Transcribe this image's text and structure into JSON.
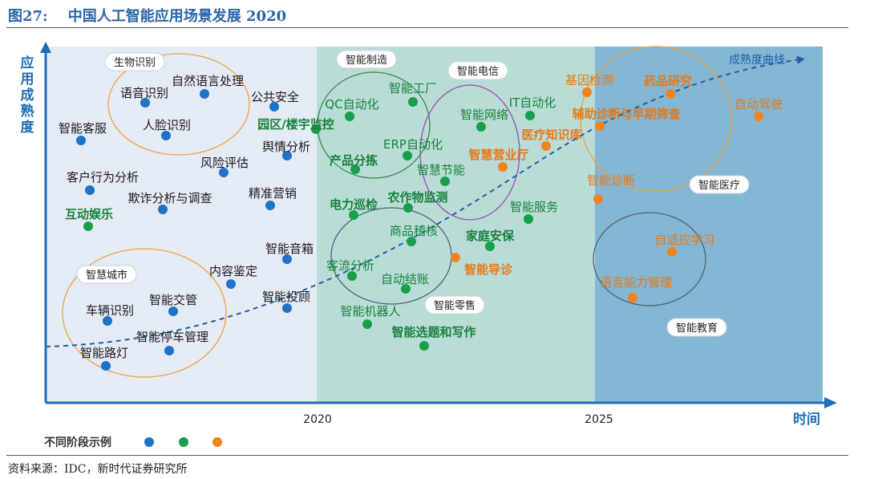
{
  "figure_title": "图27:    中国人工智能应用场景发展 2020",
  "source_note": "资料来源：IDC，新时代证券研究所",
  "colors": {
    "blue_point": "#1e73c8",
    "green_point": "#16a04a",
    "orange_point": "#f0841e",
    "zone1_bg": "#e4ebf4",
    "zone2_bg": "#b9ddd6",
    "zone3_bg": "#84b7d3",
    "axis": "#1e6eb7",
    "curve": "#1e5ea8"
  },
  "chart_data": {
    "type": "scatter",
    "title": "",
    "xlabel": "时间",
    "ylabel": "应用成熟度",
    "x_ticks": [
      "2020",
      "2025"
    ],
    "curve_label": "成熟度曲线",
    "legend": {
      "label": "不同阶段示例",
      "colors": [
        "blue",
        "green",
        "orange"
      ]
    },
    "groups": [
      {
        "name": "生物识别",
        "shape": "ellipse",
        "tone": "orange"
      },
      {
        "name": "智慧城市",
        "shape": "ellipse",
        "tone": "orange"
      },
      {
        "name": "智能制造",
        "shape": "ellipse",
        "tone": "green"
      },
      {
        "name": "智能电信",
        "shape": "ellipse",
        "tone": "purple"
      },
      {
        "name": "智能零售",
        "shape": "ellipse",
        "tone": "gray"
      },
      {
        "name": "智能医疗",
        "shape": "ellipse",
        "tone": "orange"
      },
      {
        "name": "智能教育",
        "shape": "ellipse",
        "tone": "gray"
      }
    ],
    "points": [
      {
        "label": "智能客服",
        "color": "blue",
        "bold": false
      },
      {
        "label": "语音识别",
        "color": "blue",
        "bold": false
      },
      {
        "label": "自然语言处理",
        "color": "blue",
        "bold": false
      },
      {
        "label": "公共安全",
        "color": "blue",
        "bold": false
      },
      {
        "label": "人脸识别",
        "color": "blue",
        "bold": false
      },
      {
        "label": "舆情分析",
        "color": "blue",
        "bold": false
      },
      {
        "label": "风险评估",
        "color": "blue",
        "bold": false
      },
      {
        "label": "客户行为分析",
        "color": "blue",
        "bold": false
      },
      {
        "label": "欺诈分析与调查",
        "color": "blue",
        "bold": false
      },
      {
        "label": "精准营销",
        "color": "blue",
        "bold": false
      },
      {
        "label": "互动娱乐",
        "color": "green",
        "bold": true
      },
      {
        "label": "智能音箱",
        "color": "blue",
        "bold": false
      },
      {
        "label": "内容鉴定",
        "color": "blue",
        "bold": false
      },
      {
        "label": "智能投顾",
        "color": "blue",
        "bold": false
      },
      {
        "label": "智能交管",
        "color": "blue",
        "bold": false
      },
      {
        "label": "车辆识别",
        "color": "blue",
        "bold": false
      },
      {
        "label": "智能停车管理",
        "color": "blue",
        "bold": false
      },
      {
        "label": "智能路灯",
        "color": "blue",
        "bold": false
      },
      {
        "label": "园区/楼宇监控",
        "color": "green",
        "bold": true
      },
      {
        "label": "QC自动化",
        "color": "green",
        "bold": false
      },
      {
        "label": "智能工厂",
        "color": "green",
        "bold": false
      },
      {
        "label": "产品分拣",
        "color": "green",
        "bold": true
      },
      {
        "label": "ERP自动化",
        "color": "green",
        "bold": false
      },
      {
        "label": "智慧节能",
        "color": "green",
        "bold": false
      },
      {
        "label": "智能网络",
        "color": "green",
        "bold": false
      },
      {
        "label": "IT自动化",
        "color": "green",
        "bold": false
      },
      {
        "label": "智慧营业厅",
        "color": "orange",
        "bold": true
      },
      {
        "label": "电力巡检",
        "color": "green",
        "bold": true
      },
      {
        "label": "农作物监测",
        "color": "green",
        "bold": true
      },
      {
        "label": "智能服务",
        "color": "green",
        "bold": false
      },
      {
        "label": "商品稽核",
        "color": "green",
        "bold": false
      },
      {
        "label": "家庭安保",
        "color": "green",
        "bold": true
      },
      {
        "label": "智能导诊",
        "color": "orange",
        "bold": true
      },
      {
        "label": "客流分析",
        "color": "green",
        "bold": false
      },
      {
        "label": "自动结账",
        "color": "green",
        "bold": false
      },
      {
        "label": "智能机器人",
        "color": "green",
        "bold": false
      },
      {
        "label": "智能选题和写作",
        "color": "green",
        "bold": true
      },
      {
        "label": "基因检测",
        "color": "orange",
        "bold": false
      },
      {
        "label": "药品研究",
        "color": "orange",
        "bold": true
      },
      {
        "label": "辅助诊断与早期筛查",
        "color": "orange",
        "bold": true
      },
      {
        "label": "医疗知识库",
        "color": "orange",
        "bold": true
      },
      {
        "label": "智能诊断",
        "color": "orange",
        "bold": false
      },
      {
        "label": "自动驾驶",
        "color": "orange",
        "bold": false
      },
      {
        "label": "自适应学习",
        "color": "orange",
        "bold": false
      },
      {
        "label": "语言能力管理",
        "color": "orange",
        "bold": false
      }
    ]
  }
}
